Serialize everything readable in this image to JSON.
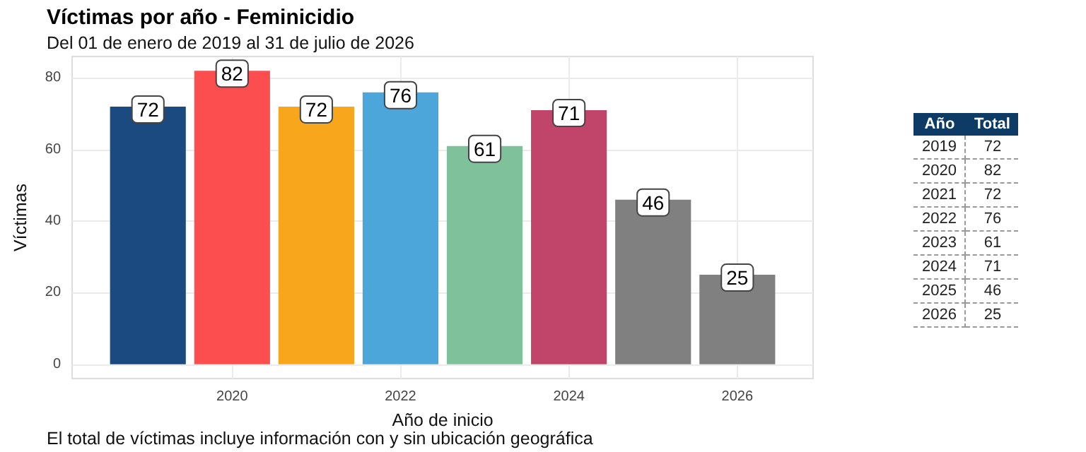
{
  "chart_data": [
    {
      "type": "bar",
      "title": "Víctimas por año - Feminicidio",
      "subtitle": "Del 01 de enero de 2019 al 31 de julio de 2026",
      "xlabel": "Año de inicio",
      "ylabel": "Víctimas",
      "annotations": [
        "El total de víctimas incluye información con y sin ubicación geográfica"
      ],
      "x": [
        2019,
        2020,
        2021,
        2022,
        2023,
        2024,
        2025,
        2026
      ],
      "values": [
        72,
        82,
        72,
        76,
        61,
        71,
        46,
        25
      ],
      "colors": [
        "#1a4a7f",
        "#fc4e4e",
        "#f8a61b",
        "#4da6da",
        "#7fc19a",
        "#c1446a",
        "#808080",
        "#808080"
      ],
      "xlim": [
        2018.1,
        2026.9
      ],
      "xticks": [
        2020,
        2022,
        2024,
        2026
      ],
      "ylim": [
        -4,
        86
      ],
      "yticks": [
        0,
        20,
        40,
        60,
        80
      ],
      "grid": true,
      "data_labels": true
    },
    {
      "type": "heatmap",
      "ylabel": "Año",
      "categories": [
        "Total"
      ],
      "y_categories": [
        "2019",
        "2020",
        "2021",
        "2022",
        "2023",
        "2024",
        "2025",
        "2026"
      ],
      "cells": [
        [
          72
        ],
        [
          82
        ],
        [
          72
        ],
        [
          76
        ],
        [
          61
        ],
        [
          71
        ],
        [
          46
        ],
        [
          25
        ]
      ],
      "data_labels": true
    }
  ]
}
